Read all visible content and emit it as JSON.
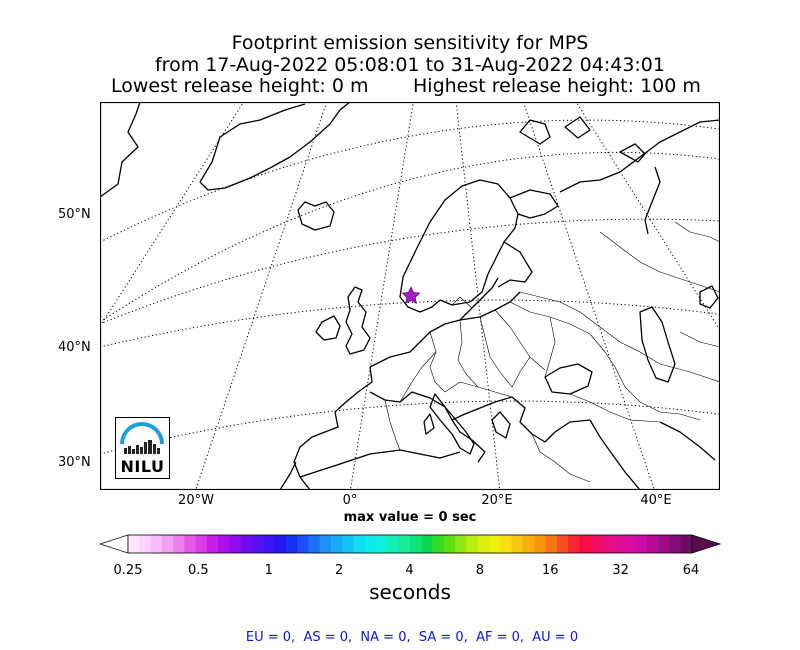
{
  "title": {
    "line1": "Footprint emission sensitivity for MPS",
    "line2": "from 17-Aug-2022 05:08:01 to 31-Aug-2022 04:43:01",
    "lowest": "Lowest release height: 0 m",
    "highest": "Highest release height: 100 m"
  },
  "map": {
    "lat_labels": [
      "50°N",
      "40°N",
      "30°N"
    ],
    "lon_labels": [
      "20°W",
      "0°",
      "20°E",
      "40°E"
    ],
    "site_marker_color": "#a020c0",
    "max_value_text": "max value = 0 sec",
    "logo_text": "NILU",
    "logo_color": "#1aa0e0"
  },
  "colorbar": {
    "ticks": [
      "0.25",
      "0.5",
      "1",
      "2",
      "4",
      "8",
      "16",
      "32",
      "64"
    ],
    "label": "seconds"
  },
  "regions": "EU = 0,  AS = 0,  NA = 0,  SA = 0,  AF = 0,  AU = 0"
}
